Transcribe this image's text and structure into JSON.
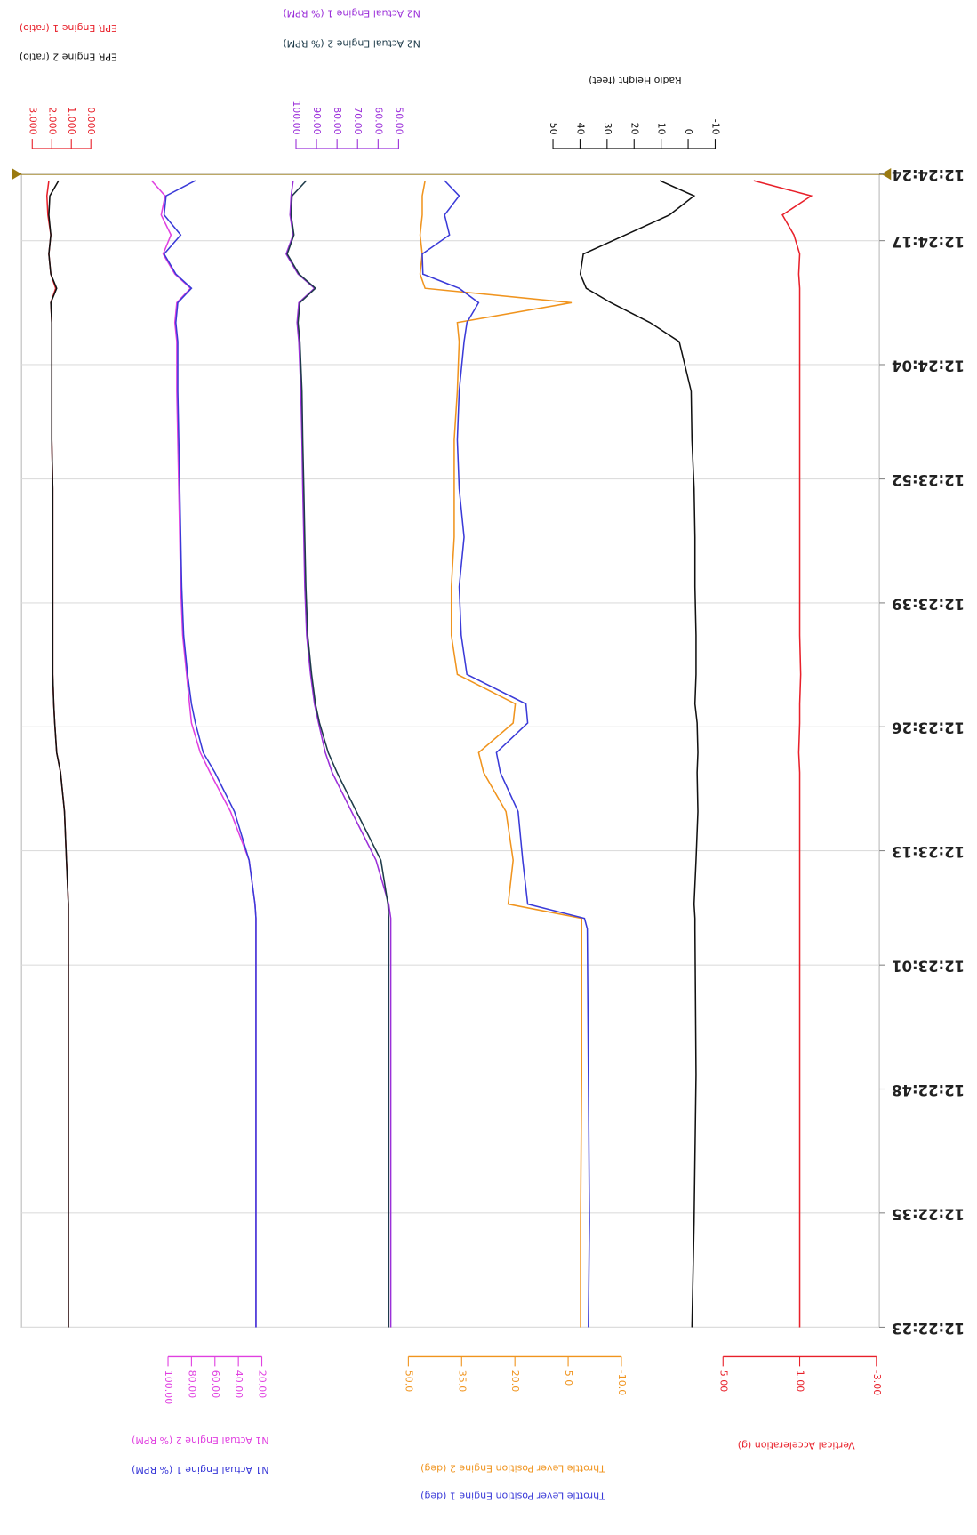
{
  "chart_data": {
    "type": "line",
    "x": [
      44543,
      44554.1,
      44569.5,
      44584.8,
      44585.9,
      44587.4,
      44592,
      44597.1,
      44601.2,
      44603.3,
      44606.4,
      44608.4,
      44611.5,
      44615.6,
      44620.7,
      44625.9,
      44631,
      44636.1,
      44641.2,
      44646.4,
      44648.4,
      44650.5,
      44652,
      44653.5,
      44655.6,
      44657.6,
      44659.7,
      44661.7,
      44663.3
    ],
    "xlim": [
      44543,
      44664
    ],
    "xticks": [
      {
        "value": 44664,
        "label": "12:24:24"
      },
      {
        "value": 44657,
        "label": "12:24:17"
      },
      {
        "value": 44644,
        "label": "12:24:04"
      },
      {
        "value": 44632,
        "label": "12:23:52"
      },
      {
        "value": 44619,
        "label": "12:23:39"
      },
      {
        "value": 44606,
        "label": "12:23:26"
      },
      {
        "value": 44593,
        "label": "12:23:13"
      },
      {
        "value": 44581,
        "label": "12:23:01"
      },
      {
        "value": 44568,
        "label": "12:22:48"
      },
      {
        "value": 44555,
        "label": "12:22:35"
      },
      {
        "value": 44543,
        "label": "12:22:23"
      }
    ],
    "grid": true,
    "value_axes": [
      {
        "lim": [
          3,
          0
        ],
        "ticks": [
          {
            "value": 3,
            "label": "3.000"
          },
          {
            "value": 2,
            "label": "2.000"
          },
          {
            "value": 1,
            "label": "1.000"
          },
          {
            "value": 0,
            "label": "0.000"
          }
        ],
        "series": [
          {
            "name": "EPR Engine 1 (ratio)",
            "color": "#e8202a",
            "values": [
              1.15,
              1.15,
              1.15,
              1.15,
              1.15,
              1.15,
              1.25,
              1.35,
              1.55,
              1.75,
              1.85,
              1.9,
              1.95,
              1.95,
              1.95,
              1.95,
              1.95,
              2,
              2,
              2,
              2,
              2.05,
              1.8,
              2.05,
              2.15,
              2.05,
              2.2,
              2.25,
              2.15
            ]
          },
          {
            "name": "EPR Engine 2 (ratio)",
            "color": "#111111",
            "values": [
              1.15,
              1.15,
              1.15,
              1.15,
              1.15,
              1.15,
              1.25,
              1.35,
              1.55,
              1.75,
              1.85,
              1.9,
              1.95,
              1.95,
              1.95,
              1.95,
              1.95,
              2,
              2,
              2,
              2,
              2.05,
              1.75,
              2.05,
              2.15,
              2.05,
              2.15,
              2.1,
              1.65
            ]
          }
        ]
      },
      {
        "lim": [
          100,
          50
        ],
        "ticks": [
          {
            "value": 100,
            "label": "100.00"
          },
          {
            "value": 90,
            "label": "90.00"
          },
          {
            "value": 80,
            "label": "80.00"
          },
          {
            "value": 70,
            "label": "70.00"
          },
          {
            "value": 60,
            "label": "60.00"
          },
          {
            "value": 50,
            "label": "50.00"
          }
        ],
        "series": [
          {
            "name": "N2 Actual Engine 1 (% RPM)",
            "color": "#9b30d9",
            "values": [
              53.8,
              53.8,
              53.8,
              53.8,
              53.8,
              54.8,
              61,
              72.9,
              82.4,
              85.7,
              89,
              91,
              92.9,
              94.8,
              95.7,
              96.2,
              96.7,
              97.1,
              97.6,
              98.6,
              99.5,
              98.6,
              91,
              99,
              104.8,
              101.4,
              102.9,
              102.4,
              101.4
            ]
          },
          {
            "name": "N2 Actual Engine 2 (% RPM)",
            "color": "#1e3b4a",
            "values": [
              54.8,
              54.8,
              54.8,
              54.8,
              54.8,
              55.2,
              58.6,
              70.5,
              80,
              84.3,
              88.5,
              90.5,
              92.4,
              94.3,
              95.2,
              95.7,
              96.2,
              96.7,
              97.1,
              98.1,
              99,
              98.1,
              90.5,
              98.5,
              104.3,
              101,
              102.4,
              101.9,
              95
            ]
          }
        ]
      },
      {
        "lim": [
          50,
          -10
        ],
        "ticks": [
          50,
          40,
          30,
          20,
          10,
          0,
          -10
        ],
        "series": [
          {
            "name": "Radio Height (feet)",
            "color": "#111111",
            "values": [
              -1.4,
              -2.2,
              -2.9,
              -2.5,
              -2.5,
              -2.2,
              -2.9,
              -3.6,
              -3.3,
              -3.6,
              -3.3,
              -2.5,
              -2.9,
              -2.9,
              -2.5,
              -2.5,
              -2.2,
              -1.4,
              -1.1,
              3.3,
              14.1,
              28.6,
              37.7,
              39.9,
              38.8,
              23.2,
              6.9,
              -2.2,
              10.5
            ]
          }
        ]
      },
      {
        "lim": [
          100,
          20
        ],
        "ticks": [
          {
            "value": 100,
            "label": "100.00"
          },
          {
            "value": 80,
            "label": "80.00"
          },
          {
            "value": 60,
            "label": "60.00"
          },
          {
            "value": 40,
            "label": "40.00"
          },
          {
            "value": 20,
            "label": "20.00"
          }
        ],
        "series": [
          {
            "name": "N1 Actual Engine 2 (% RPM)",
            "color": "#e040e0",
            "values": [
              25,
              25,
              25,
              25,
              25,
              25.8,
              30.8,
              46.7,
              64.2,
              72.5,
              80,
              81.7,
              84.2,
              87.5,
              89.2,
              90,
              90.8,
              91.7,
              92.5,
              92.5,
              94.2,
              92.5,
              80.8,
              94.2,
              104.2,
              97.5,
              105.8,
              102.5,
              114
            ]
          },
          {
            "name": "N1 Actual Engine 1 (% RPM)",
            "color": "#3a3ad8",
            "values": [
              25,
              25,
              25,
              25,
              25,
              25.8,
              30.8,
              43.3,
              60,
              70,
              76.7,
              80,
              83.3,
              86.7,
              88.3,
              89.2,
              90,
              90.8,
              91.7,
              91.7,
              93.3,
              91.7,
              80,
              93.3,
              103.3,
              89.2,
              103.3,
              101.7,
              76.7
            ]
          }
        ]
      },
      {
        "lim": [
          50,
          -10
        ],
        "ticks": [
          {
            "value": 50,
            "label": "50.0"
          },
          {
            "value": 35,
            "label": "35.0"
          },
          {
            "value": 20,
            "label": "20.0"
          },
          {
            "value": 5,
            "label": "5.0"
          },
          {
            "value": -10,
            "label": "-10.0"
          }
        ],
        "series": [
          {
            "name": "Throttle Lever Position Engine 2 (deg)",
            "color": "#f0941e",
            "values": [
              1.5,
              1.5,
              1.2,
              1.2,
              1.2,
              21.9,
              20.5,
              22.5,
              28.8,
              30.2,
              20.5,
              19.9,
              36.2,
              37.9,
              37.9,
              37.1,
              37.1,
              37.1,
              36.2,
              35.7,
              36.2,
              4,
              45.3,
              46.7,
              46.1,
              46.7,
              46.1,
              46.1,
              45.3
            ]
          },
          {
            "name": "Throttle Lever Position Engine 1 (deg)",
            "color": "#3a3ad8",
            "values": [
              -0.7,
              -1,
              -0.7,
              -0.4,
              0.4,
              16.4,
              17.8,
              19.1,
              24.1,
              25.2,
              16.4,
              16.9,
              33.5,
              35.1,
              35.7,
              34.3,
              35.7,
              36.2,
              35.7,
              34.3,
              33.5,
              30.2,
              35.7,
              45.9,
              46.1,
              38.4,
              39.8,
              35.7,
              39.8
            ]
          }
        ]
      },
      {
        "lim": [
          5,
          -3
        ],
        "ticks": [
          {
            "value": 5,
            "label": "5.00"
          },
          {
            "value": 1,
            "label": "1.00"
          },
          {
            "value": -3,
            "label": "-3.00"
          }
        ],
        "series": [
          {
            "name": "Vertical Acceleration (g)",
            "color": "#e8202a",
            "values": [
              1,
              1,
              1,
              1,
              1,
              1,
              1,
              1,
              1,
              1.05,
              1,
              1,
              0.95,
              1,
              1,
              1,
              1,
              1,
              1,
              1,
              1,
              1,
              1,
              1.05,
              1,
              1.3,
              1.9,
              0.4,
              3.4
            ]
          }
        ]
      }
    ]
  }
}
